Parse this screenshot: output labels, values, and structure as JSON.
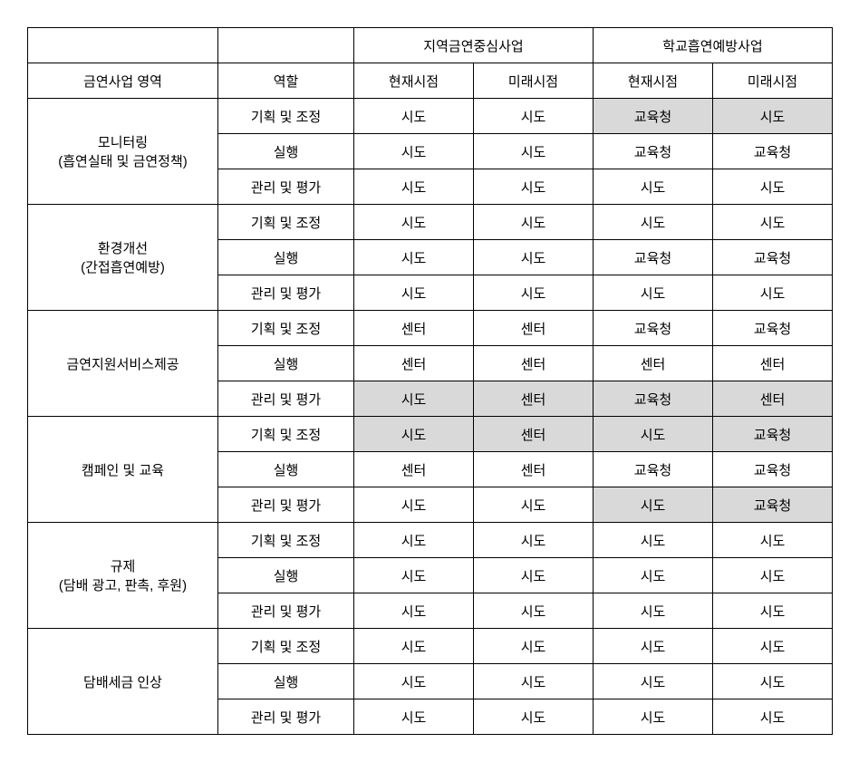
{
  "headers": {
    "group_regional": "지역금연중심사업",
    "group_school": "학교흡연예방사업",
    "area": "금연사업 영역",
    "role": "역할",
    "current": "현재시점",
    "future": "미래시점"
  },
  "roles": {
    "plan": "기획 및 조정",
    "exec": "실행",
    "manage": "관리 및 평가"
  },
  "areas": {
    "a1": "모니터링\n(흡연실태 및 금연정책)",
    "a2": "환경개선\n(간접흡연예방)",
    "a3": "금연지원서비스제공",
    "a4": "캠페인 및 교육",
    "a5": "규제\n(담배 광고, 판촉, 후원)",
    "a6": "담배세금 인상"
  },
  "vals": {
    "sido": "시도",
    "edu": "교육청",
    "center": "센터"
  }
}
